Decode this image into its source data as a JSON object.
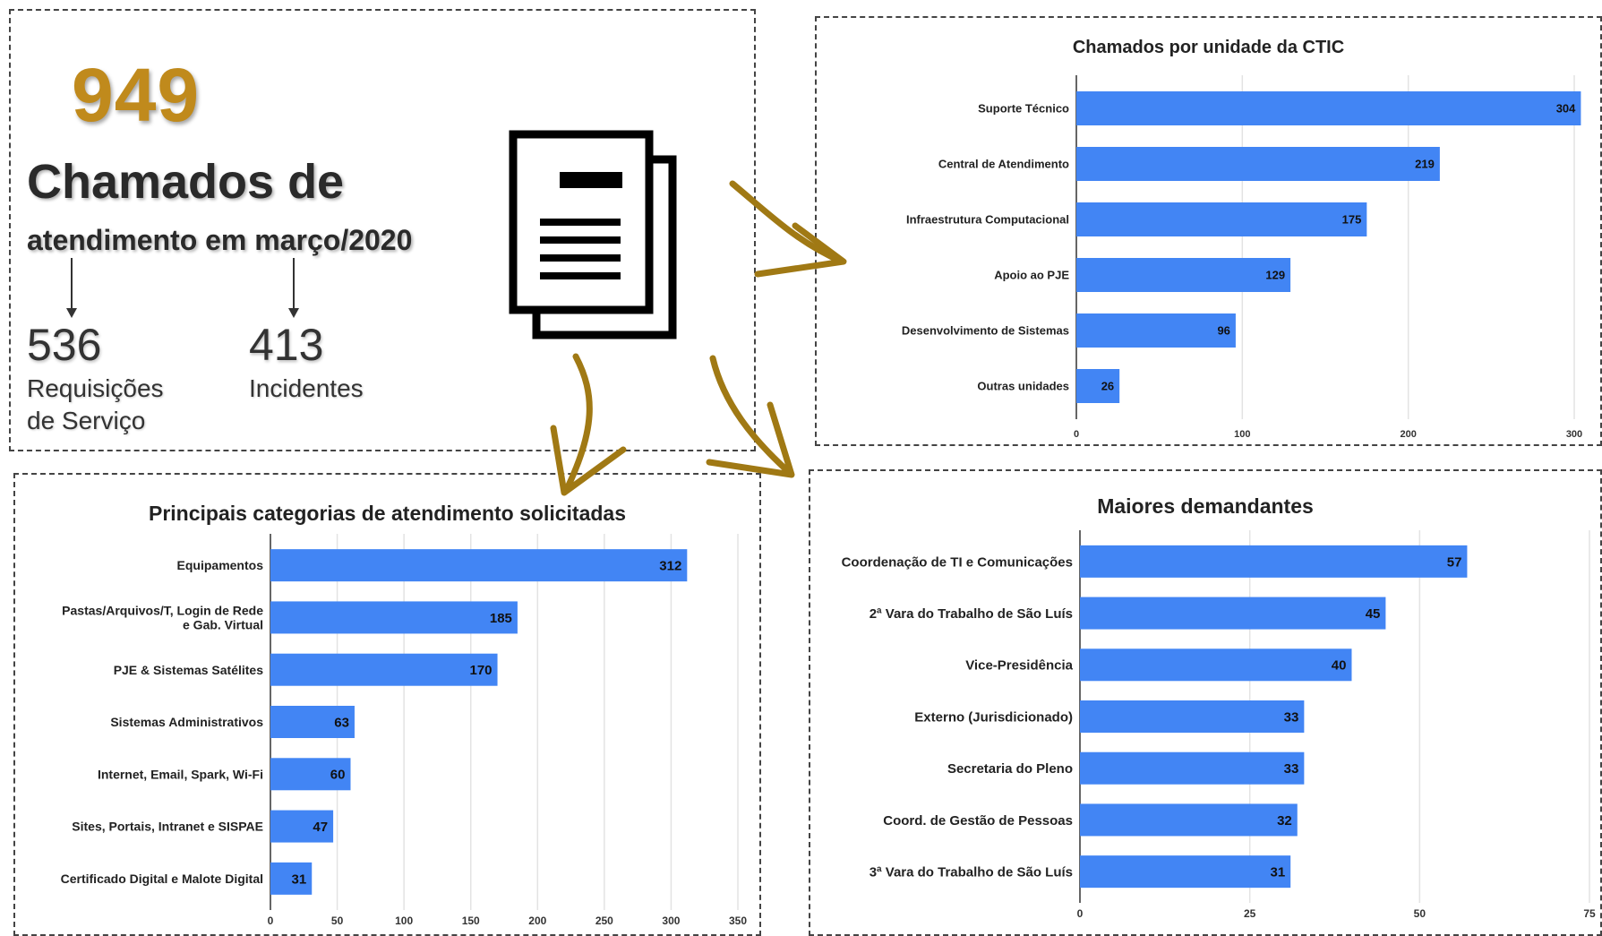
{
  "summary": {
    "total": "949",
    "headline": "Chamados de",
    "subheadline": "atendimento em março/2020",
    "requests_value": "536",
    "requests_label_line1": "Requisições",
    "requests_label_line2": "de Serviço",
    "incidents_value": "413",
    "incidents_label": "Incidentes",
    "document_icon": "document-copy-icon",
    "total_color": "#c08a1c"
  },
  "colors": {
    "bar": "#4285f4",
    "arrow": "#a07914",
    "grid": "#e3e3e3"
  },
  "chart_data": [
    {
      "id": "unidade",
      "type": "bar",
      "orientation": "horizontal",
      "title": "Chamados por unidade da CTIC",
      "categories": [
        "Suporte Técnico",
        "Central de Atendimento",
        "Infraestrutura Computacional",
        "Apoio ao PJE",
        "Desenvolvimento de Sistemas",
        "Outras unidades"
      ],
      "values": [
        304,
        219,
        175,
        129,
        96,
        26
      ],
      "xlim": [
        0,
        300
      ],
      "xticks": [
        0,
        100,
        200,
        300
      ],
      "grid": true,
      "data_labels": true
    },
    {
      "id": "categorias",
      "type": "bar",
      "orientation": "horizontal",
      "title": "Principais categorias de atendimento solicitadas",
      "categories": [
        "Equipamentos",
        "Pastas/Arquivos/T, Login de Rede e Gab. Virtual",
        "PJE & Sistemas Satélites",
        "Sistemas Administrativos",
        "Internet, Email, Spark, Wi-Fi",
        "Sites, Portais, Intranet e SISPAE",
        "Certificado Digital e Malote Digital"
      ],
      "category_lines": [
        [
          "Equipamentos"
        ],
        [
          "Pastas/Arquivos/T, Login de Rede",
          "e Gab. Virtual"
        ],
        [
          "PJE & Sistemas Satélites"
        ],
        [
          "Sistemas Administrativos"
        ],
        [
          "Internet, Email, Spark, Wi-Fi"
        ],
        [
          "Sites, Portais, Intranet e SISPAE"
        ],
        [
          "Certificado Digital e Malote Digital"
        ]
      ],
      "values": [
        312,
        185,
        170,
        63,
        60,
        47,
        31
      ],
      "xlim": [
        0,
        350
      ],
      "xticks": [
        0,
        50,
        100,
        150,
        200,
        250,
        300,
        350
      ],
      "grid": true,
      "data_labels": true
    },
    {
      "id": "demandantes",
      "type": "bar",
      "orientation": "horizontal",
      "title": "Maiores demandantes",
      "categories": [
        "Coordenação de TI e Comunicações",
        "2ª Vara do Trabalho de São Luís",
        "Vice-Presidência",
        "Externo (Jurisdicionado)",
        "Secretaria do Pleno",
        "Coord. de Gestão de Pessoas",
        "3ª Vara do Trabalho de São Luís"
      ],
      "values": [
        57,
        45,
        40,
        33,
        33,
        32,
        31
      ],
      "xlim": [
        0,
        75
      ],
      "xticks": [
        0,
        25,
        50,
        75
      ],
      "grid": true,
      "data_labels": true
    }
  ]
}
